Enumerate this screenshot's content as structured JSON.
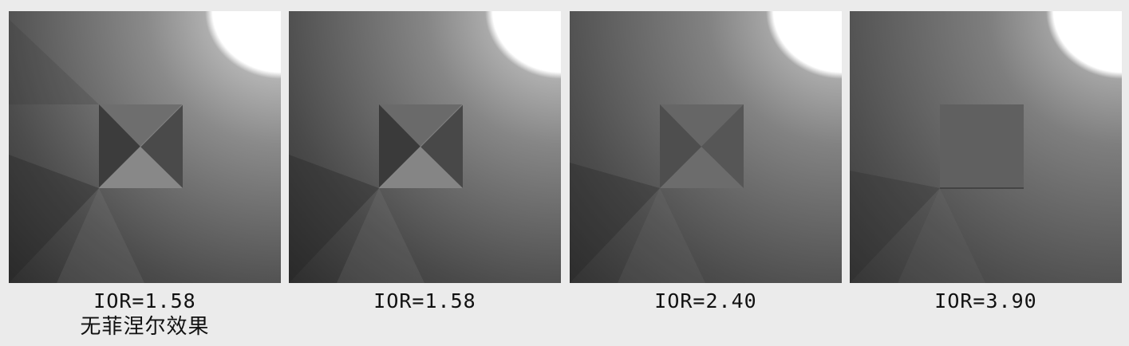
{
  "panels": [
    {
      "caption": "IOR=1.58",
      "caption_line2": "无菲涅尔效果",
      "square_contrast": "high"
    },
    {
      "caption": "IOR=1.58",
      "caption_line2": "",
      "square_contrast": "high"
    },
    {
      "caption": "IOR=2.40",
      "caption_line2": "",
      "square_contrast": "medium"
    },
    {
      "caption": "IOR=3.90",
      "caption_line2": "",
      "square_contrast": "low"
    }
  ],
  "colors": {
    "background": "#ebebeb",
    "light": "#ffffff",
    "floor_dark": "#303030",
    "floor_mid": "#6a6a6a"
  }
}
